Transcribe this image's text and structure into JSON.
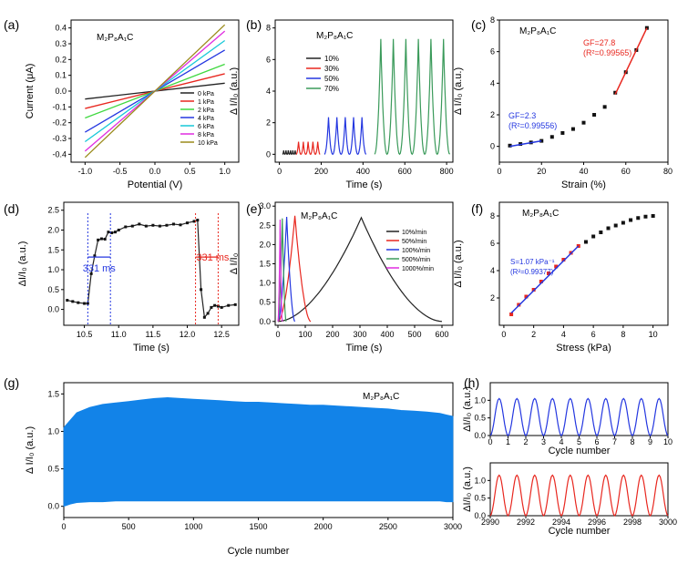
{
  "chart_data": [
    {
      "panel": "(a)",
      "type": "line",
      "material": "M₂P₈A₁C",
      "xlabel": "Potential (V)",
      "ylabel": "Current (μA)",
      "xlim": [
        -1.2,
        1.2
      ],
      "ylim": [
        -0.45,
        0.45
      ],
      "xticks": [
        "-1.0",
        "-0.5",
        "0.0",
        "0.5",
        "1.0"
      ],
      "yticks": [
        "-0.4",
        "-0.3",
        "-0.2",
        "-0.1",
        "0.0",
        "0.1",
        "0.2",
        "0.3",
        "0.4"
      ],
      "legend_position": "bottom-right",
      "series": [
        {
          "name": "0 kPa",
          "color": "#222222",
          "x": [
            -1.0,
            1.0
          ],
          "y": [
            -0.05,
            0.05
          ]
        },
        {
          "name": "1 kPa",
          "color": "#e8271f",
          "x": [
            -1.0,
            1.0
          ],
          "y": [
            -0.11,
            0.11
          ]
        },
        {
          "name": "2 kPa",
          "color": "#3fd83f",
          "x": [
            -1.0,
            1.0
          ],
          "y": [
            -0.17,
            0.17
          ]
        },
        {
          "name": "4 kPa",
          "color": "#2437e0",
          "x": [
            -1.0,
            1.0
          ],
          "y": [
            -0.26,
            0.26
          ]
        },
        {
          "name": "6 kPa",
          "color": "#17c8d8",
          "x": [
            -1.0,
            1.0
          ],
          "y": [
            -0.32,
            0.32
          ]
        },
        {
          "name": "8 kPa",
          "color": "#e02ce0",
          "x": [
            -1.0,
            1.0
          ],
          "y": [
            -0.38,
            0.38
          ]
        },
        {
          "name": "10 kPa",
          "color": "#9a8a1a",
          "x": [
            -1.0,
            1.0
          ],
          "y": [
            -0.42,
            0.42
          ]
        }
      ]
    },
    {
      "panel": "(b)",
      "type": "line",
      "material": "M₂P₈A₁C",
      "xlabel": "Time (s)",
      "ylabel": "Δ I/I₀ (a.u.)",
      "xlim": [
        -20,
        830
      ],
      "ylim": [
        -0.5,
        8.5
      ],
      "xticks": [
        "0",
        "200",
        "400",
        "600",
        "800"
      ],
      "yticks": [
        "0",
        "2",
        "4",
        "6",
        "8"
      ],
      "legend_position": "center-left",
      "series": [
        {
          "name": "10%",
          "color": "#222222",
          "start": 15,
          "period": 11,
          "cycles": 6,
          "peak": 0.25
        },
        {
          "name": "30%",
          "color": "#e8271f",
          "start": 80,
          "period": 23,
          "cycles": 5,
          "peak": 0.8
        },
        {
          "name": "50%",
          "color": "#2437e0",
          "start": 215,
          "period": 40,
          "cycles": 5,
          "peak": 2.35
        },
        {
          "name": "70%",
          "color": "#3a9a5a",
          "start": 455,
          "period": 60,
          "cycles": 6,
          "peak": 7.3
        }
      ]
    },
    {
      "panel": "(c)",
      "type": "scatter",
      "material": "M₂P₈A₁C",
      "xlabel": "Strain (%)",
      "ylabel": "Δ I/I₀ (a.u.)",
      "xlim": [
        0,
        80
      ],
      "ylim": [
        -1,
        8
      ],
      "xticks": [
        "0",
        "20",
        "40",
        "60",
        "80"
      ],
      "yticks": [
        "0",
        "2",
        "4",
        "6",
        "8"
      ],
      "points": {
        "x": [
          5,
          10,
          15,
          20,
          25,
          30,
          35,
          40,
          45,
          50,
          55,
          60,
          65,
          70
        ],
        "y": [
          0.05,
          0.15,
          0.25,
          0.35,
          0.6,
          0.85,
          1.1,
          1.5,
          2.0,
          2.5,
          3.4,
          4.7,
          6.1,
          7.5
        ]
      },
      "fits": [
        {
          "color": "#2437e0",
          "x": [
            5,
            20
          ],
          "y": [
            0.0,
            0.35
          ],
          "label1": "GF=2.3",
          "label2": "(R²=0.99556)"
        },
        {
          "color": "#e8271f",
          "x": [
            55,
            70
          ],
          "y": [
            3.3,
            7.5
          ],
          "label1": "GF=27.8",
          "label2": "(R²=0.99565)"
        }
      ]
    },
    {
      "panel": "(d)",
      "type": "line",
      "xlabel": "Time (s)",
      "ylabel": "ΔI/I₀ (a.u.)",
      "xlim": [
        10.2,
        12.75
      ],
      "ylim": [
        -0.4,
        2.7
      ],
      "xticks": [
        "10.5",
        "11.0",
        "11.5",
        "12.0",
        "12.5"
      ],
      "yticks": [
        "0.0",
        "0.5",
        "1.0",
        "1.5",
        "2.0",
        "2.5"
      ],
      "series": [
        {
          "color": "#222222",
          "x": [
            10.25,
            10.33,
            10.41,
            10.5,
            10.55,
            10.6,
            10.65,
            10.7,
            10.75,
            10.8,
            10.85,
            10.9,
            10.95,
            11.0,
            11.1,
            11.2,
            11.3,
            11.4,
            11.5,
            11.6,
            11.7,
            11.8,
            11.9,
            12.0,
            12.1,
            12.15,
            12.2,
            12.25,
            12.3,
            12.35,
            12.4,
            12.45,
            12.5,
            12.6,
            12.7
          ],
          "y": [
            0.23,
            0.2,
            0.17,
            0.15,
            0.15,
            0.9,
            1.35,
            1.75,
            1.78,
            1.77,
            1.95,
            1.93,
            1.95,
            2.0,
            2.08,
            2.1,
            2.15,
            2.1,
            2.12,
            2.1,
            2.12,
            2.15,
            2.13,
            2.18,
            2.22,
            2.25,
            0.5,
            -0.2,
            -0.1,
            0.05,
            0.1,
            0.08,
            0.05,
            0.1,
            0.12
          ]
        }
      ],
      "annotations": [
        {
          "text": "331 ms",
          "color": "#2437e0",
          "x1": 10.55,
          "x2": 10.88
        },
        {
          "text": "331 ms",
          "color": "#e8271f",
          "x1": 12.12,
          "x2": 12.45
        }
      ]
    },
    {
      "panel": "(e)",
      "type": "line",
      "material": "M₂P₈A₁C",
      "xlabel": "Time (s)",
      "ylabel": "Δ I/I₀",
      "xlim": [
        -10,
        640
      ],
      "ylim": [
        -0.1,
        3.1
      ],
      "xticks": [
        "0",
        "100",
        "200",
        "300",
        "400",
        "500",
        "600"
      ],
      "yticks": [
        "0.0",
        "0.5",
        "1.0",
        "1.5",
        "2.0",
        "2.5",
        "3.0"
      ],
      "legend_position": "top-right",
      "series": [
        {
          "name": "10%/min",
          "color": "#222222",
          "peak_t": 305,
          "end_t": 600,
          "peak": 2.7
        },
        {
          "name": "50%/min",
          "color": "#e8271f",
          "peak_t": 62,
          "end_t": 120,
          "peak": 2.75
        },
        {
          "name": "100%/min",
          "color": "#2437e0",
          "peak_t": 32,
          "end_t": 62,
          "peak": 2.72
        },
        {
          "name": "500%/min",
          "color": "#3a9a5a",
          "peak_t": 16,
          "end_t": 30,
          "peak": 2.68
        },
        {
          "name": "1000%/min",
          "color": "#e02ce0",
          "peak_t": 8,
          "end_t": 16,
          "peak": 2.65
        }
      ]
    },
    {
      "panel": "(f)",
      "type": "scatter",
      "material": "M₂P₈A₁C",
      "xlabel": "Stress (kPa)",
      "ylabel": "Δ I/I₀ (a.u.)",
      "xlim": [
        -0.3,
        11
      ],
      "ylim": [
        0,
        9
      ],
      "xticks": [
        "0",
        "2",
        "4",
        "6",
        "8",
        "10"
      ],
      "yticks": [
        "2",
        "4",
        "6",
        "8"
      ],
      "points": {
        "x": [
          0.5,
          1,
          1.5,
          2,
          2.5,
          3,
          3.5,
          4,
          4.5,
          5,
          5.5,
          6,
          6.5,
          7,
          7.5,
          8,
          8.5,
          9,
          9.5,
          10
        ],
        "y": [
          0.8,
          1.5,
          2.1,
          2.6,
          3.2,
          3.8,
          4.3,
          4.8,
          5.3,
          5.8,
          6.1,
          6.5,
          6.8,
          7.1,
          7.3,
          7.5,
          7.7,
          7.85,
          7.95,
          8.0
        ]
      },
      "fits": [
        {
          "color": "#2437e0",
          "x": [
            0.5,
            5
          ],
          "y": [
            0.9,
            5.8
          ],
          "label1": "S=1.07 kPa⁻¹",
          "label2": "(R²=0.99377)"
        }
      ]
    },
    {
      "panel": "(g)",
      "type": "area",
      "material": "M₂P₈A₁C",
      "xlabel": "Cycle number",
      "ylabel": "Δ I/I₀ (a.u.)",
      "xlim": [
        0,
        3000
      ],
      "ylim": [
        -0.15,
        1.65
      ],
      "xticks": [
        "0",
        "500",
        "1000",
        "1500",
        "2000",
        "2500",
        "3000"
      ],
      "yticks": [
        "0.0",
        "0.5",
        "1.0",
        "1.5"
      ],
      "color": "#1283e8",
      "x": [
        0,
        50,
        100,
        200,
        300,
        400,
        500,
        600,
        700,
        800,
        900,
        1000,
        1100,
        1200,
        1300,
        1400,
        1500,
        1600,
        1700,
        1800,
        1900,
        2000,
        2100,
        2200,
        2300,
        2400,
        2500,
        2600,
        2700,
        2800,
        2900,
        2950,
        3000
      ],
      "upper": [
        1.05,
        1.15,
        1.25,
        1.32,
        1.36,
        1.38,
        1.4,
        1.42,
        1.44,
        1.45,
        1.44,
        1.43,
        1.42,
        1.41,
        1.4,
        1.39,
        1.39,
        1.38,
        1.37,
        1.36,
        1.35,
        1.35,
        1.34,
        1.33,
        1.32,
        1.31,
        1.3,
        1.28,
        1.27,
        1.26,
        1.24,
        1.22,
        1.2
      ],
      "lower": [
        0.0,
        0.03,
        0.05,
        0.06,
        0.06,
        0.07,
        0.07,
        0.07,
        0.07,
        0.07,
        0.07,
        0.07,
        0.07,
        0.07,
        0.07,
        0.07,
        0.07,
        0.07,
        0.07,
        0.07,
        0.07,
        0.07,
        0.07,
        0.07,
        0.07,
        0.07,
        0.07,
        0.07,
        0.07,
        0.07,
        0.07,
        0.06,
        0.06
      ]
    },
    {
      "panel": "(h)",
      "type": "line",
      "xlabel": "Cycle number",
      "ylabel": "ΔI/I₀ (a.u.)",
      "xlim": [
        0,
        10
      ],
      "ylim": [
        0,
        1.5
      ],
      "xticks": [
        "0",
        "1",
        "2",
        "3",
        "4",
        "5",
        "6",
        "7",
        "8",
        "9",
        "10"
      ],
      "yticks": [
        "0.0",
        "0.5",
        "1.0"
      ],
      "color": "#2437e0",
      "cycles": 10,
      "offset": 0,
      "peak": 1.05
    },
    {
      "panel": "(h)",
      "type": "line",
      "xlabel": "Cycle number",
      "ylabel": "ΔI/I₀ (a.u.)",
      "xlim": [
        2990,
        3000
      ],
      "ylim": [
        0,
        1.5
      ],
      "xticks": [
        "2990",
        "2992",
        "2994",
        "2996",
        "2998",
        "3000"
      ],
      "yticks": [
        "0.0",
        "0.5",
        "1.0"
      ],
      "color": "#e8271f",
      "cycles": 10,
      "offset": 2990,
      "peak": 1.15
    }
  ]
}
